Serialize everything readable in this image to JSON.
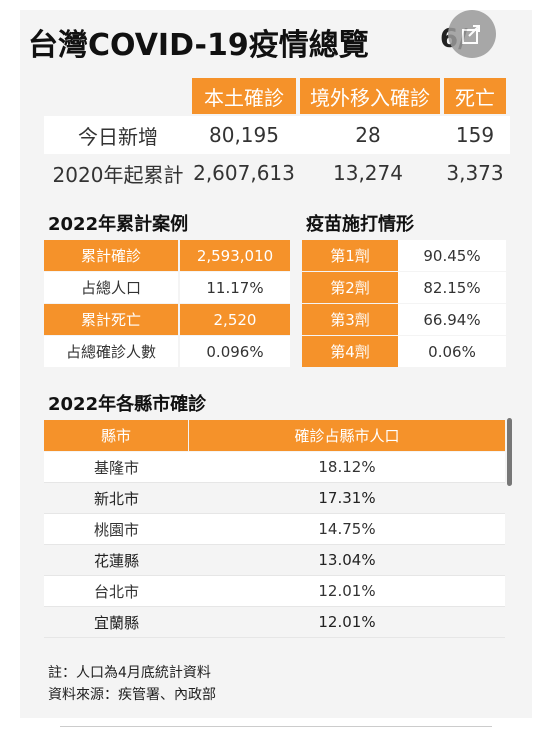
{
  "header": {
    "title": "台灣COVID-19疫情總覽",
    "date_partial": "6/"
  },
  "summary": {
    "columns": [
      "本土確診",
      "境外移入確診",
      "死亡"
    ],
    "rows": [
      {
        "label": "今日新增",
        "values": [
          "80,195",
          "28",
          "159"
        ]
      },
      {
        "label": "2020年起累計",
        "values": [
          "2,607,613",
          "13,274",
          "3,373"
        ]
      }
    ]
  },
  "cases2022": {
    "title": "2022年累計案例",
    "rows": [
      {
        "label": "累計確診",
        "value": "2,593,010"
      },
      {
        "label": "占總人口",
        "value": "11.17%"
      },
      {
        "label": "累計死亡",
        "value": "2,520"
      },
      {
        "label": "占總確診人數",
        "value": "0.096%"
      }
    ]
  },
  "vaccine": {
    "title": "疫苗施打情形",
    "rows": [
      {
        "label": "第1劑",
        "value": "90.45%"
      },
      {
        "label": "第2劑",
        "value": "82.15%"
      },
      {
        "label": "第3劑",
        "value": "66.94%"
      },
      {
        "label": "第4劑",
        "value": "0.06%"
      }
    ]
  },
  "county": {
    "title": "2022年各縣市確診",
    "columns": [
      "縣市",
      "確診占縣市人口"
    ],
    "rows": [
      {
        "name": "基隆市",
        "value": "18.12%"
      },
      {
        "name": "新北市",
        "value": "17.31%"
      },
      {
        "name": "桃園市",
        "value": "14.75%"
      },
      {
        "name": "花蓮縣",
        "value": "13.04%"
      },
      {
        "name": "台北市",
        "value": "12.01%"
      },
      {
        "name": "宜蘭縣",
        "value": "12.01%"
      }
    ]
  },
  "notes": {
    "note": "註：人口為4月底統計資料",
    "source": "資料來源：疾管署、內政部"
  },
  "colors": {
    "accent": "#f5922a",
    "background": "#f4f4f4"
  },
  "icons": {
    "share": "share-icon"
  }
}
